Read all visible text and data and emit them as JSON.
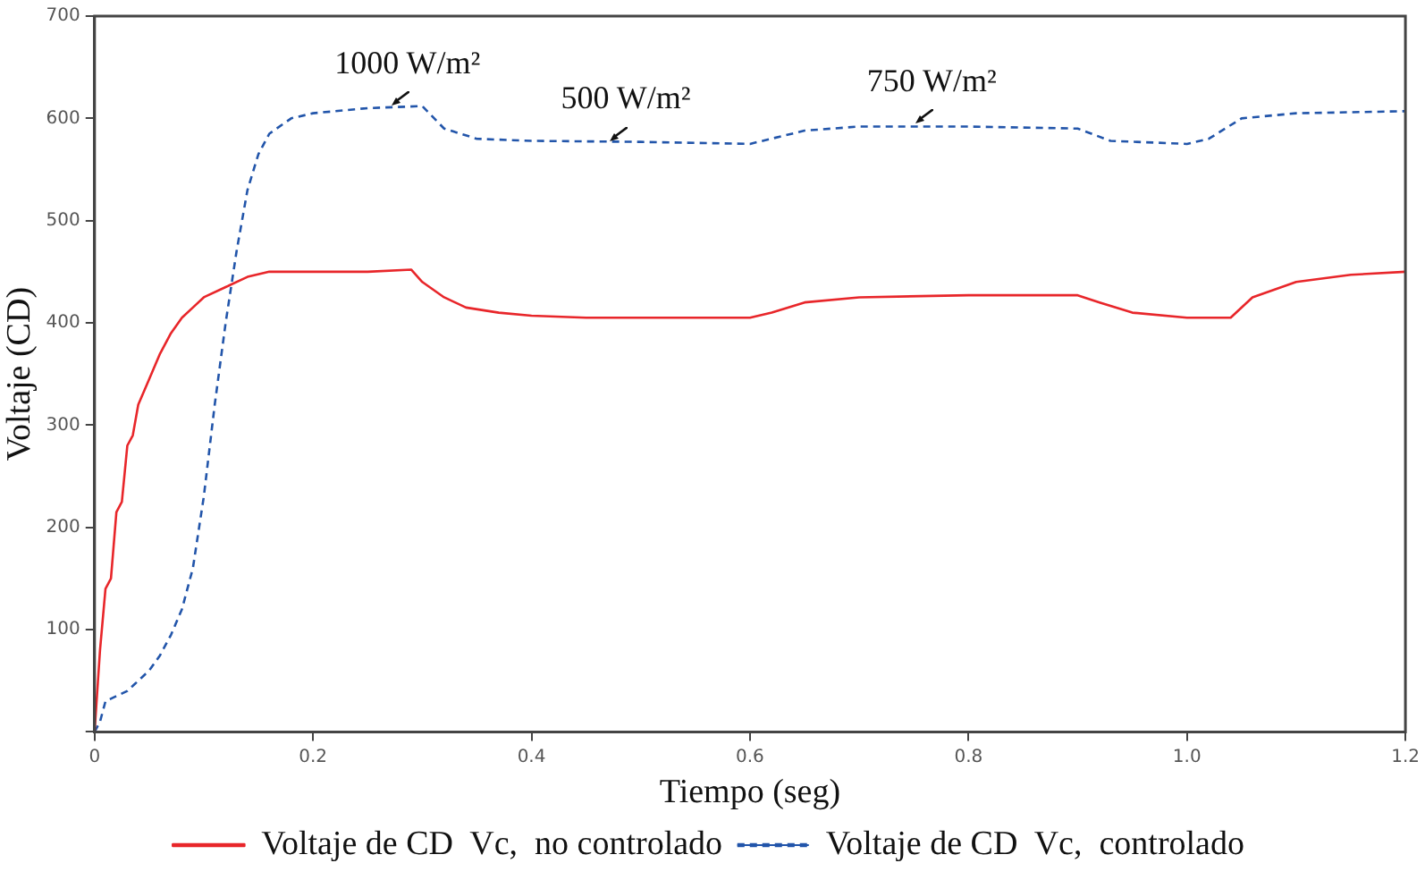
{
  "chart_data": {
    "type": "line",
    "xlabel": "Tiempo (seg)",
    "ylabel": "Voltaje (CD)",
    "xlim": [
      0,
      1.2
    ],
    "xticks": [
      0,
      0.2,
      0.4,
      0.6,
      0.8,
      {
        "value": 1,
        "label": "1.0"
      },
      1.2
    ],
    "ylim": [
      0,
      700
    ],
    "yticks": [
      {
        "value": 0,
        "label": null
      },
      100,
      200,
      300,
      400,
      500,
      600,
      700
    ],
    "grid": false,
    "legend": "bottom",
    "marker": "none",
    "series": [
      {
        "name": "Voltaje de CD  Vc,  no controlado",
        "color": "#e8262a",
        "line_style": "solid",
        "x": [
          0,
          0.005,
          0.01,
          0.015,
          0.02,
          0.025,
          0.03,
          0.035,
          0.04,
          0.05,
          0.06,
          0.07,
          0.08,
          0.09,
          0.1,
          0.12,
          0.14,
          0.16,
          0.2,
          0.25,
          0.29,
          0.3,
          0.32,
          0.34,
          0.37,
          0.4,
          0.45,
          0.5,
          0.55,
          0.6,
          0.62,
          0.65,
          0.7,
          0.8,
          0.9,
          0.92,
          0.95,
          1.0,
          1.04,
          1.06,
          1.1,
          1.15,
          1.2
        ],
        "values": [
          0,
          80,
          140,
          150,
          215,
          225,
          280,
          290,
          320,
          345,
          370,
          390,
          405,
          415,
          425,
          435,
          445,
          450,
          450,
          450,
          452,
          440,
          425,
          415,
          410,
          407,
          405,
          405,
          405,
          405,
          410,
          420,
          425,
          427,
          427,
          420,
          410,
          405,
          405,
          425,
          440,
          447,
          450
        ]
      },
      {
        "name": "Voltaje de CD  Vc,  controlado",
        "color": "#2255aa",
        "line_style": "dashed",
        "x": [
          0,
          0.005,
          0.01,
          0.02,
          0.03,
          0.04,
          0.05,
          0.06,
          0.07,
          0.08,
          0.09,
          0.1,
          0.11,
          0.12,
          0.13,
          0.14,
          0.15,
          0.16,
          0.18,
          0.2,
          0.25,
          0.3,
          0.32,
          0.35,
          0.4,
          0.5,
          0.6,
          0.65,
          0.7,
          0.8,
          0.9,
          0.93,
          1.0,
          1.02,
          1.05,
          1.1,
          1.2
        ],
        "values": [
          0,
          10,
          30,
          35,
          40,
          50,
          60,
          75,
          95,
          120,
          160,
          230,
          320,
          400,
          470,
          530,
          565,
          585,
          600,
          605,
          610,
          612,
          590,
          580,
          578,
          577,
          575,
          588,
          592,
          592,
          590,
          578,
          575,
          580,
          600,
          605,
          607
        ]
      }
    ],
    "annotations": [
      {
        "text": "1000 W/m²",
        "x": 0.27,
        "y": 612
      },
      {
        "text": "500 W/m²",
        "x": 0.47,
        "y": 578
      },
      {
        "text": "750 W/m²",
        "x": 0.75,
        "y": 595
      }
    ]
  }
}
